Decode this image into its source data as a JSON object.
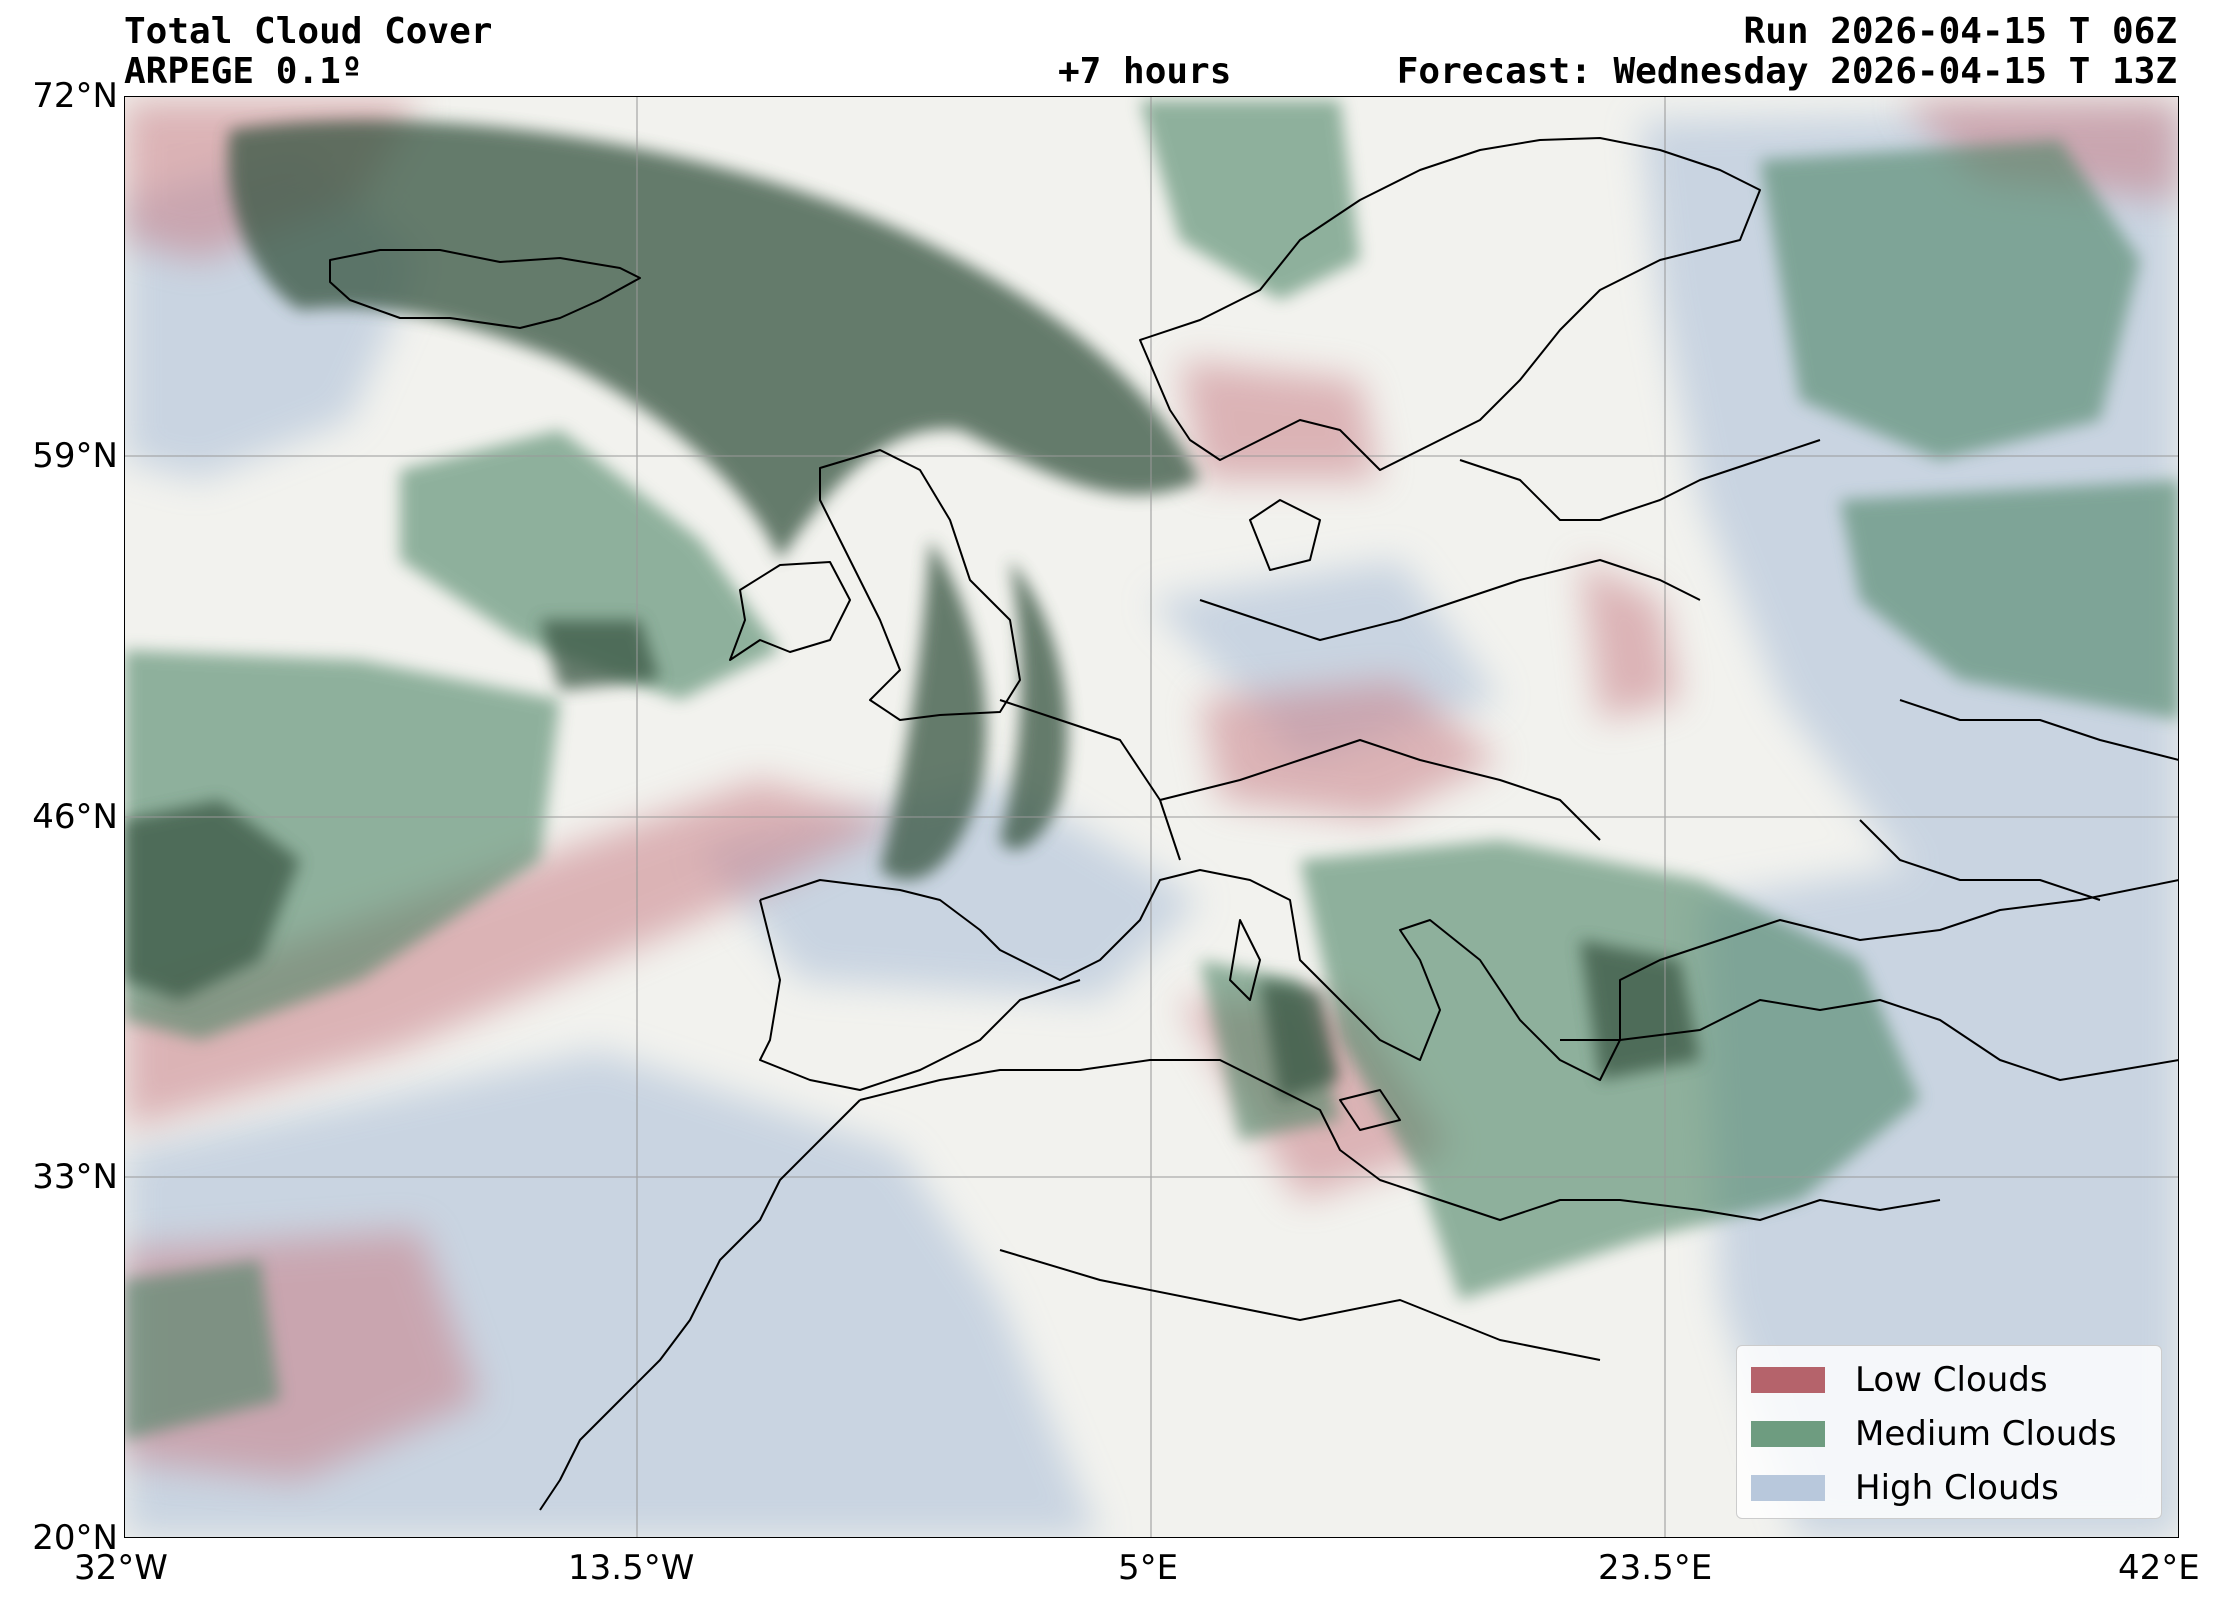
{
  "header": {
    "title": "Total Cloud Cover",
    "model": "ARPEGE 0.1º",
    "run": "Run 2026-04-15 T 06Z",
    "lead": "+7 hours",
    "forecast": "Forecast: Wednesday 2026-04-15 T 13Z"
  },
  "axes": {
    "lat_ticks": [
      "72°N",
      "59°N",
      "46°N",
      "33°N",
      "20°N"
    ],
    "lon_ticks": [
      "32°W",
      "13.5°W",
      "5°E",
      "23.5°E",
      "42°E"
    ],
    "lat_range": [
      20,
      72
    ],
    "lon_range": [
      -32,
      42
    ],
    "grid": true
  },
  "legend": {
    "placement": "bottom-right",
    "items": [
      {
        "label": "Low Clouds",
        "color": "#b5636b"
      },
      {
        "label": "Medium Clouds",
        "color": "#6e9c80"
      },
      {
        "label": "High Clouds",
        "color": "#b8c8dc"
      }
    ]
  },
  "colors": {
    "background": "#f2f2ee",
    "low": "#c98088",
    "medium": "#4e8566",
    "dark": "#3d5a47",
    "high": "#b8c8dc",
    "coast": "#000000"
  }
}
